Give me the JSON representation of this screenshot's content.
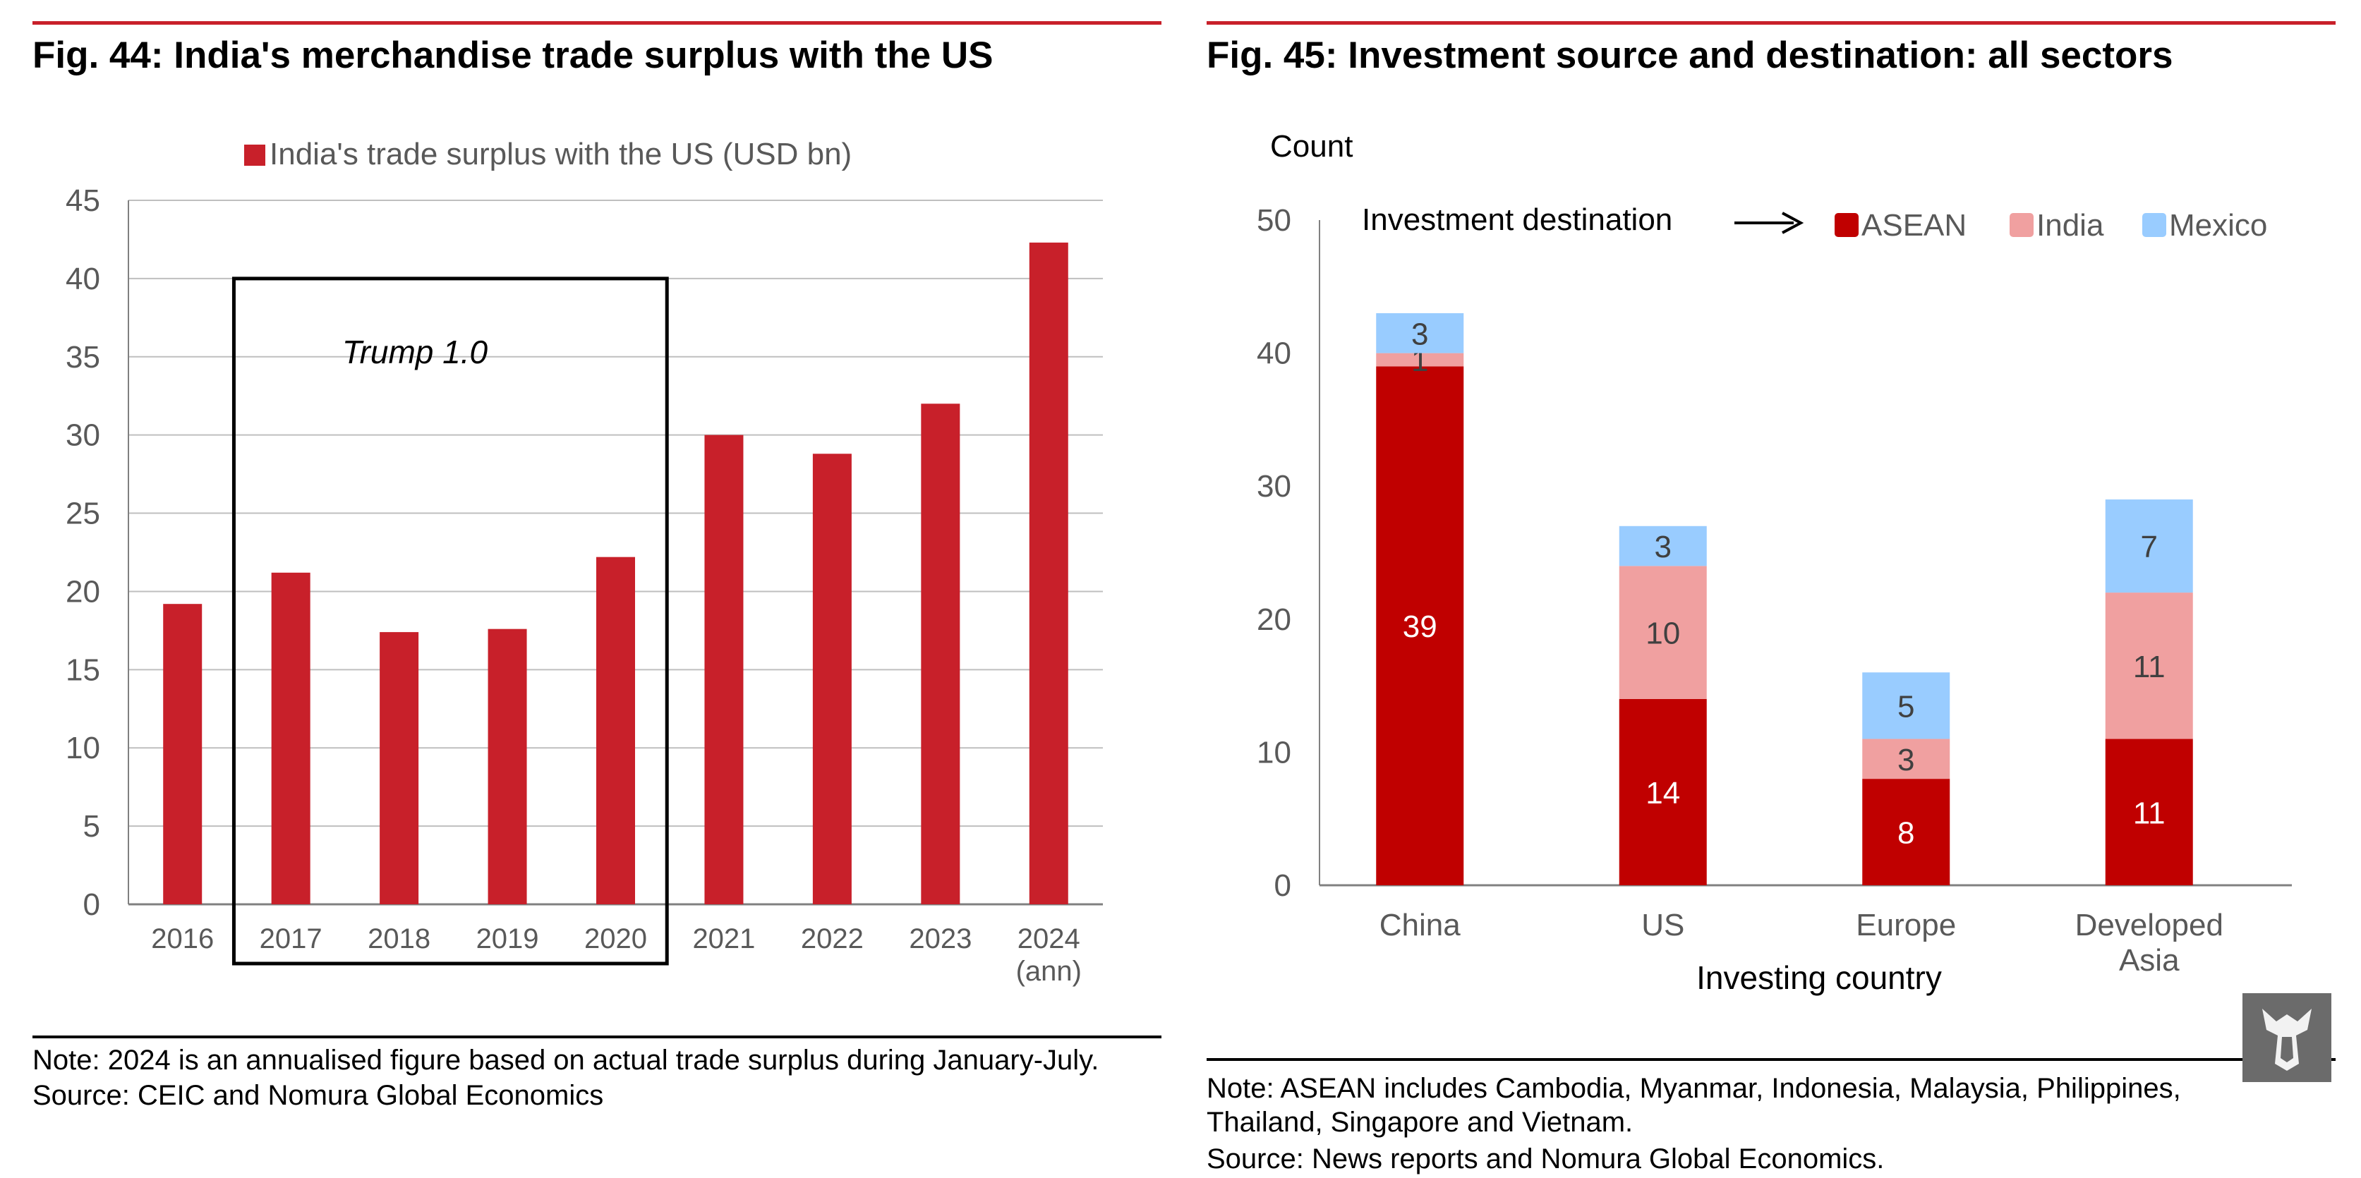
{
  "colors": {
    "accent_line": "#c8202a",
    "bar_red": "#c8202a",
    "asean": "#c00000",
    "india": "#f0a0a0",
    "mexico": "#99ccff",
    "grid": "#bfbfbf",
    "axis_text": "#595959"
  },
  "left": {
    "title": "Fig. 44: India's merchandise trade surplus with the US",
    "note": "Note: 2024 is an annualised figure based on actual trade surplus during January-July.",
    "source": "Source: CEIC and Nomura Global Economics"
  },
  "right": {
    "title": "Fig. 45: Investment source and destination: all sectors",
    "note_line1": "Note: ASEAN includes Cambodia, Myanmar, Indonesia, Malaysia, Philippines,",
    "note_line2": "Thailand, Singapore and Vietnam.",
    "source": "Source: News reports and Nomura Global Economics."
  },
  "logo_icon": "stylized-animal-logo-icon",
  "chart_data": [
    {
      "type": "bar",
      "title": "",
      "categories": [
        "2016",
        "2017",
        "2018",
        "2019",
        "2020",
        "2021",
        "2022",
        "2023",
        "2024\n(ann)"
      ],
      "series": [
        {
          "name": "India's trade surplus with the US (USD bn)",
          "values": [
            19.2,
            21.2,
            17.4,
            17.6,
            22.2,
            30.0,
            28.8,
            32.0,
            42.3
          ]
        }
      ],
      "ylim": [
        0,
        45
      ],
      "yticks": [
        0,
        5,
        10,
        15,
        20,
        25,
        30,
        35,
        40,
        45
      ],
      "xlabel": "",
      "ylabel": "",
      "grid": true,
      "legend": "top-center",
      "annotations": [
        {
          "text": "Trump 1.0",
          "range": [
            "2017",
            "2020"
          ],
          "ylim": [
            0,
            40
          ]
        }
      ]
    },
    {
      "type": "bar",
      "stacked": true,
      "title": "",
      "categories": [
        "China",
        "US",
        "Europe",
        "Developed\nAsia"
      ],
      "series": [
        {
          "name": "ASEAN",
          "values": [
            39,
            14,
            8,
            11
          ]
        },
        {
          "name": "India",
          "values": [
            1,
            10,
            3,
            11
          ]
        },
        {
          "name": "Mexico",
          "values": [
            3,
            3,
            5,
            7
          ]
        }
      ],
      "ylim": [
        0,
        50
      ],
      "yticks": [
        0,
        10,
        20,
        30,
        40,
        50
      ],
      "xlabel": "Investing country",
      "ylabel": "Count",
      "grid": false,
      "legend": "top",
      "legend_title": "Investment destination"
    }
  ]
}
